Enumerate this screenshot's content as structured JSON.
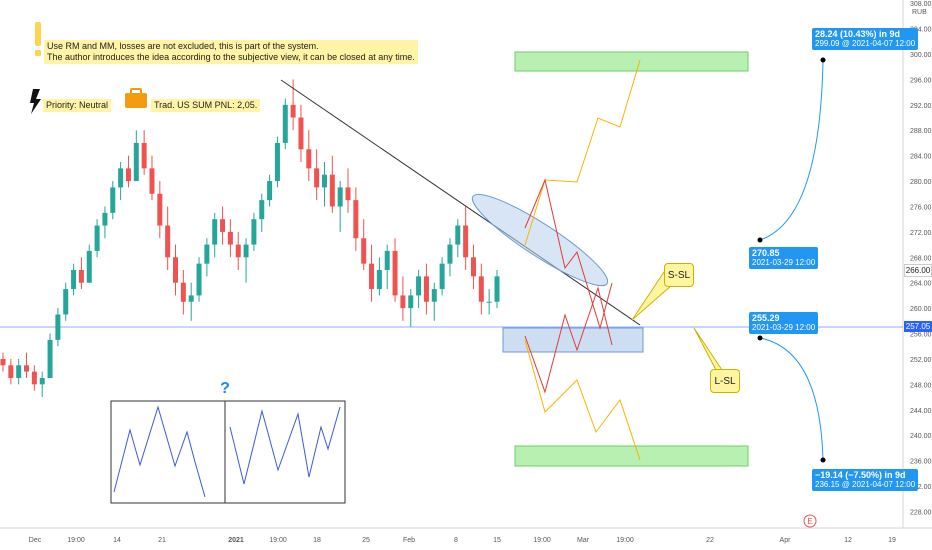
{
  "chart_data": {
    "type": "candlestick",
    "currency": "RUB",
    "x_tick_labels": [
      "Dec",
      "19:00",
      "14",
      "21",
      "2021",
      "19:00",
      "18",
      "25",
      "Feb",
      "8",
      "15",
      "19:00",
      "Mar",
      "19:00",
      "22",
      "Apr",
      "12",
      "19"
    ],
    "y_tick_labels": [
      "228.00",
      "232.00",
      "236.00",
      "240.00",
      "244.00",
      "248.00",
      "252.00",
      "256.00",
      "260.00",
      "264.00",
      "268.00",
      "272.00",
      "276.00",
      "280.00",
      "284.00",
      "288.00",
      "292.00",
      "296.00",
      "300.00",
      "304.00",
      "308.00"
    ],
    "ylim": [
      226,
      310
    ],
    "last_price": "266.00",
    "level_price": "257.05",
    "candles_approx": [
      [
        252,
        253,
        250,
        251
      ],
      [
        251,
        252,
        248,
        249
      ],
      [
        249,
        252,
        248,
        251
      ],
      [
        251,
        253,
        249,
        250
      ],
      [
        250,
        251,
        247,
        248
      ],
      [
        248,
        250,
        246,
        249
      ],
      [
        249,
        256,
        249,
        255
      ],
      [
        255,
        260,
        254,
        259
      ],
      [
        259,
        264,
        258,
        263
      ],
      [
        263,
        267,
        262,
        266
      ],
      [
        266,
        268,
        263,
        264
      ],
      [
        264,
        270,
        264,
        269
      ],
      [
        269,
        274,
        268,
        273
      ],
      [
        273,
        276,
        271,
        275
      ],
      [
        275,
        280,
        274,
        279
      ],
      [
        279,
        283,
        277,
        282
      ],
      [
        282,
        284,
        279,
        280
      ],
      [
        280,
        288,
        280,
        286
      ],
      [
        286,
        288,
        281,
        282
      ],
      [
        282,
        284,
        277,
        278
      ],
      [
        278,
        280,
        271,
        273
      ],
      [
        273,
        276,
        266,
        268
      ],
      [
        268,
        270,
        262,
        264
      ],
      [
        264,
        266,
        259,
        261
      ],
      [
        261,
        264,
        258,
        262
      ],
      [
        262,
        268,
        261,
        267
      ],
      [
        267,
        271,
        265,
        270
      ],
      [
        270,
        275,
        268,
        274
      ],
      [
        274,
        276,
        270,
        272
      ],
      [
        272,
        274,
        268,
        270
      ],
      [
        270,
        272,
        266,
        268
      ],
      [
        268,
        271,
        264,
        270
      ],
      [
        270,
        275,
        269,
        274
      ],
      [
        274,
        278,
        272,
        277
      ],
      [
        277,
        281,
        276,
        280
      ],
      [
        280,
        287,
        279,
        286
      ],
      [
        286,
        293,
        285,
        292
      ],
      [
        292,
        296,
        288,
        290
      ],
      [
        290,
        292,
        283,
        285
      ],
      [
        285,
        288,
        280,
        282
      ],
      [
        282,
        285,
        277,
        279
      ],
      [
        279,
        283,
        276,
        281
      ],
      [
        281,
        284,
        275,
        276
      ],
      [
        276,
        280,
        272,
        279
      ],
      [
        279,
        282,
        275,
        277
      ],
      [
        277,
        279,
        269,
        271
      ],
      [
        271,
        274,
        266,
        267
      ],
      [
        267,
        270,
        261,
        263
      ],
      [
        263,
        268,
        262,
        266
      ],
      [
        266,
        270,
        263,
        269
      ],
      [
        269,
        271,
        261,
        262
      ],
      [
        262,
        265,
        258,
        260
      ],
      [
        260,
        263,
        257,
        262
      ],
      [
        262,
        266,
        260,
        265
      ],
      [
        265,
        267,
        259,
        261
      ],
      [
        261,
        264,
        258,
        263
      ],
      [
        263,
        268,
        262,
        267
      ],
      [
        267,
        271,
        265,
        270
      ],
      [
        270,
        274,
        268,
        273
      ],
      [
        273,
        276,
        266,
        268
      ],
      [
        268,
        270,
        263,
        265
      ],
      [
        265,
        267,
        259,
        261
      ],
      [
        261,
        263,
        259,
        261
      ],
      [
        261,
        266,
        260,
        265
      ]
    ]
  },
  "price_axis_unit": "RUB",
  "notes": {
    "warning_line1": "Use RM and MM, losses are not excluded, this is part of the system.",
    "warning_line2": "The author introduces the idea according to the subjective view, it can be closed at any time.",
    "priority": "Priority: Neutral",
    "pnl": "Trad. US SUM PNL: 2,05."
  },
  "callouts": {
    "s_sl": "S-SL",
    "l_sl": "L-SL"
  },
  "question_mark": "?",
  "measure_up": {
    "start_price": "270.85",
    "start_time": "2021-03-29 12:00",
    "end_line1": "28.24 (10.43%) in 9d",
    "end_line2": "299.09 @ 2021-04-07  12:00"
  },
  "measure_down": {
    "start_price": "255.29",
    "start_time": "2021-03-29 12:00",
    "end_line1": "−19.14 (−7.50%) in 9d",
    "end_line2": "236.15 @ 2021-04-07  12:00"
  },
  "price_tags": {
    "last": "266.00",
    "level": "257.05"
  },
  "colors": {
    "up": "#26a69a",
    "down": "#ef5350",
    "level_line": "#2962ff",
    "target_box": "#b7f0b1",
    "measure": "#2196f3",
    "path_up": "#f7b500",
    "path_red": "#e53935"
  },
  "icons": {
    "exclamation": "exclamation-icon",
    "lightning": "lightning-icon",
    "briefcase": "briefcase-icon",
    "e_marker": "e-icon"
  },
  "e_marker": "E"
}
